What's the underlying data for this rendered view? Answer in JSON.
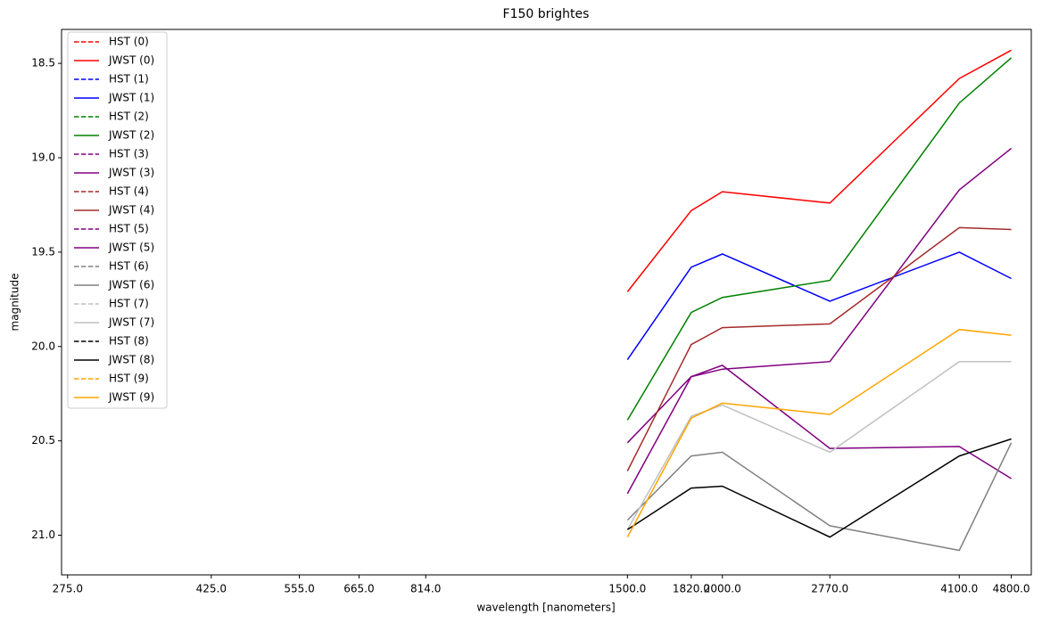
{
  "chart_data": {
    "type": "line",
    "title": "F150 brightes",
    "x_label": "wavelength [nanometers]",
    "y_label": "magnitude",
    "x_scale": "log",
    "y_inverted": true,
    "x": [
      1500,
      1820,
      2000,
      2770,
      4100,
      4800
    ],
    "xlim": [
      270,
      5100
    ],
    "xticks": [
      {
        "value": 275,
        "label": "275.0"
      },
      {
        "value": 425,
        "label": "425.0"
      },
      {
        "value": 555,
        "label": "555.0"
      },
      {
        "value": 665,
        "label": "665.0"
      },
      {
        "value": 814,
        "label": "814.0"
      },
      {
        "value": 1500,
        "label": "1500.0"
      },
      {
        "value": 1820,
        "label": "1820.0"
      },
      {
        "value": 2000,
        "label": "2000.0"
      },
      {
        "value": 2770,
        "label": "2770.0"
      },
      {
        "value": 4100,
        "label": "4100.0"
      },
      {
        "value": 4800,
        "label": "4800.0"
      }
    ],
    "ylim": [
      18.32,
      21.21
    ],
    "yticks": [
      18.5,
      {
        "value": 19,
        "label": "19.0"
      },
      19.5,
      {
        "value": 20,
        "label": "20.0"
      },
      20.5,
      {
        "value": 21,
        "label": "21.0"
      }
    ],
    "legend": "upper left",
    "series": [
      {
        "name": "HST (0)",
        "color": "#ff0000",
        "linestyle": "dashed",
        "values": [
          null,
          null,
          null,
          null,
          null,
          null
        ]
      },
      {
        "name": "JWST (0)",
        "color": "#ff0000",
        "linestyle": "solid",
        "values": [
          19.71,
          19.28,
          19.18,
          19.24,
          18.58,
          18.43
        ]
      },
      {
        "name": "HST (1)",
        "color": "#0000ff",
        "linestyle": "dashed",
        "values": [
          null,
          null,
          null,
          null,
          null,
          null
        ]
      },
      {
        "name": "JWST (1)",
        "color": "#0000ff",
        "linestyle": "solid",
        "values": [
          20.07,
          19.58,
          19.51,
          19.76,
          19.5,
          19.64
        ]
      },
      {
        "name": "HST (2)",
        "color": "#008000",
        "linestyle": "dashed",
        "values": [
          null,
          null,
          null,
          null,
          null,
          null
        ]
      },
      {
        "name": "JWST (2)",
        "color": "#008000",
        "linestyle": "solid",
        "values": [
          20.39,
          19.82,
          19.74,
          19.65,
          18.71,
          18.47
        ]
      },
      {
        "name": "HST (3)",
        "color": "#800080",
        "linestyle": "dashed",
        "values": [
          null,
          null,
          null,
          null,
          null,
          null
        ]
      },
      {
        "name": "JWST (3)",
        "color": "#800080",
        "linestyle": "solid",
        "values": [
          20.51,
          20.16,
          20.12,
          20.08,
          19.17,
          18.95
        ]
      },
      {
        "name": "HST (4)",
        "color": "#a52a2a",
        "linestyle": "dashed",
        "values": [
          null,
          null,
          null,
          null,
          null,
          null
        ]
      },
      {
        "name": "JWST (4)",
        "color": "#a52a2a",
        "linestyle": "solid",
        "values": [
          20.66,
          19.99,
          19.9,
          19.88,
          19.37,
          19.38
        ]
      },
      {
        "name": "HST (5)",
        "color": "#800080",
        "linestyle": "dashed",
        "values": [
          null,
          null,
          null,
          null,
          null,
          null
        ]
      },
      {
        "name": "JWST (5)",
        "color": "#800080",
        "linestyle": "solid",
        "values": [
          20.78,
          20.16,
          20.1,
          20.54,
          20.53,
          20.7
        ]
      },
      {
        "name": "HST (6)",
        "color": "#808080",
        "linestyle": "dashed",
        "values": [
          null,
          null,
          null,
          null,
          null,
          null
        ]
      },
      {
        "name": "JWST (6)",
        "color": "#808080",
        "linestyle": "solid",
        "values": [
          20.92,
          20.58,
          20.56,
          20.95,
          21.08,
          20.51
        ]
      },
      {
        "name": "HST (7)",
        "color": "#c0c0c0",
        "linestyle": "dashed",
        "values": [
          null,
          null,
          null,
          null,
          null,
          null
        ]
      },
      {
        "name": "JWST (7)",
        "color": "#c0c0c0",
        "linestyle": "solid",
        "values": [
          20.97,
          20.37,
          20.31,
          20.56,
          20.08,
          20.08
        ]
      },
      {
        "name": "HST (8)",
        "color": "#000000",
        "linestyle": "dashed",
        "values": [
          null,
          null,
          null,
          null,
          null,
          null
        ]
      },
      {
        "name": "JWST (8)",
        "color": "#000000",
        "linestyle": "solid",
        "values": [
          20.97,
          20.75,
          20.74,
          21.01,
          20.58,
          20.49
        ]
      },
      {
        "name": "HST (9)",
        "color": "#ffa500",
        "linestyle": "dashed",
        "values": [
          null,
          null,
          null,
          null,
          null,
          null
        ]
      },
      {
        "name": "JWST (9)",
        "color": "#ffa500",
        "linestyle": "solid",
        "values": [
          21.01,
          20.38,
          20.3,
          20.36,
          19.91,
          19.94
        ]
      }
    ]
  }
}
